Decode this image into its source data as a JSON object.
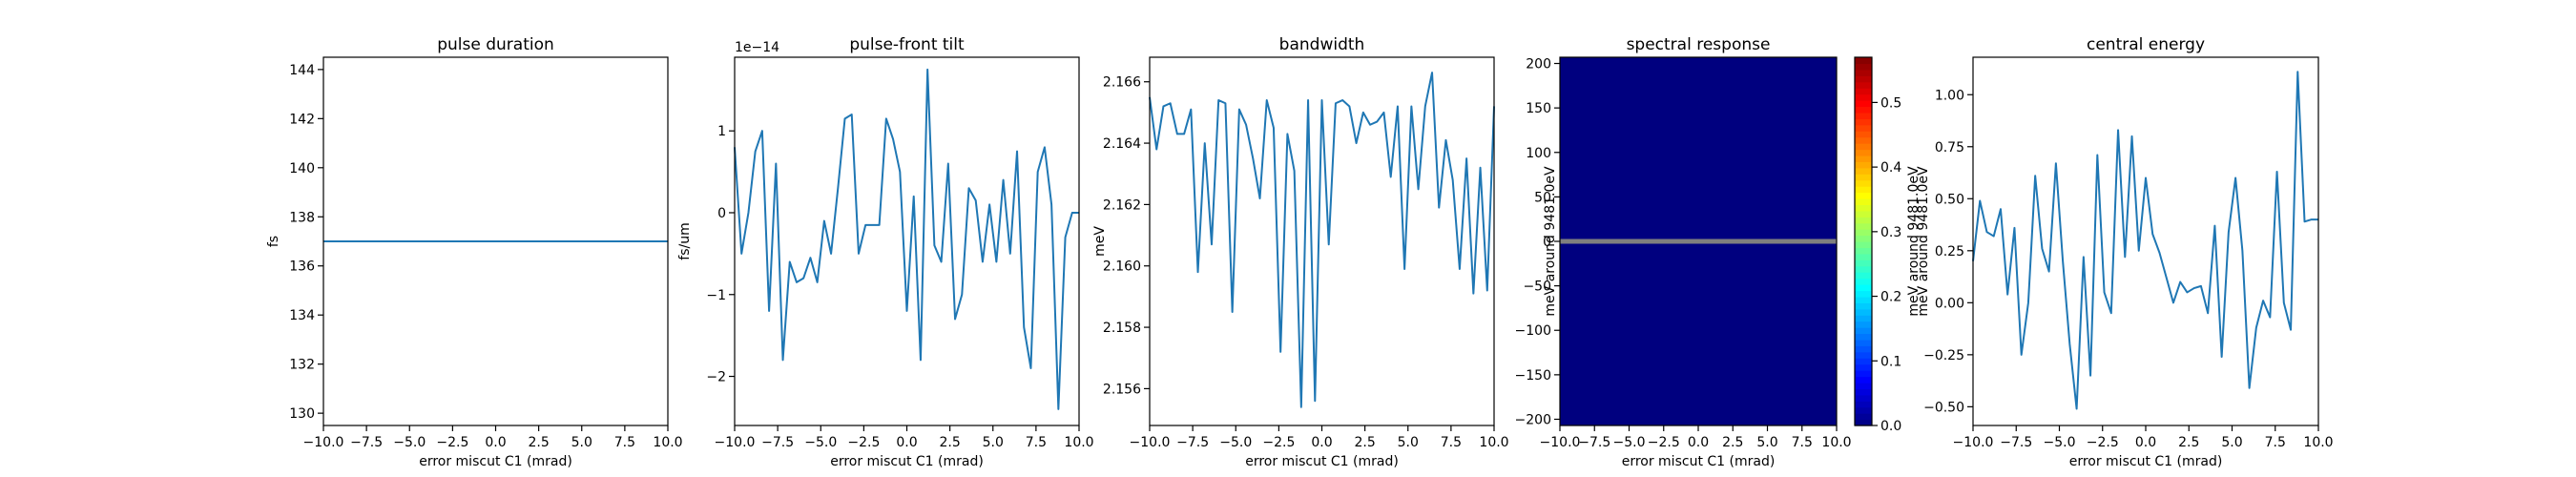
{
  "chart_data": [
    {
      "type": "line",
      "title": "pulse duration",
      "xlabel": "error miscut C1 (mrad)",
      "ylabel": "fs",
      "xlim": [
        -10,
        10
      ],
      "ylim": [
        129.5,
        144.5
      ],
      "xticks": [
        -10,
        -7.5,
        -5,
        -2.5,
        0,
        2.5,
        5,
        7.5,
        10
      ],
      "xtick_labels": [
        "−10.0",
        "−7.5",
        "−5.0",
        "−2.5",
        "0.0",
        "2.5",
        "5.0",
        "7.5",
        "10.0"
      ],
      "yticks": [
        130,
        132,
        134,
        136,
        138,
        140,
        142,
        144
      ],
      "ytick_labels": [
        "130",
        "132",
        "134",
        "136",
        "138",
        "140",
        "142",
        "144"
      ],
      "color": "#1f77b4",
      "series": [
        {
          "x": [
            -10,
            10
          ],
          "y": [
            137.0,
            137.0
          ]
        }
      ]
    },
    {
      "type": "line",
      "title": "pulse-front tilt",
      "xlabel": "error miscut C1 (mrad)",
      "ylabel": "fs/um",
      "offset_text": "1e−14",
      "xlim": [
        -10,
        10
      ],
      "ylim": [
        -2.6,
        1.9
      ],
      "xticks": [
        -10,
        -7.5,
        -5,
        -2.5,
        0,
        2.5,
        5,
        7.5,
        10
      ],
      "xtick_labels": [
        "−10.0",
        "−7.5",
        "−5.0",
        "−2.5",
        "0.0",
        "2.5",
        "5.0",
        "7.5",
        "10.0"
      ],
      "yticks": [
        -2,
        -1,
        0,
        1
      ],
      "ytick_labels": [
        "−2",
        "−1",
        "0",
        "1"
      ],
      "color": "#1f77b4",
      "series": [
        {
          "x": [
            -10,
            -9.6,
            -9.2,
            -8.8,
            -8.4,
            -8.0,
            -7.6,
            -7.2,
            -6.8,
            -6.4,
            -6.0,
            -5.6,
            -5.2,
            -4.8,
            -4.4,
            -4.0,
            -3.6,
            -3.2,
            -2.8,
            -2.4,
            -2.0,
            -1.6,
            -1.2,
            -0.8,
            -0.4,
            0.0,
            0.4,
            0.8,
            1.2,
            1.6,
            2.0,
            2.4,
            2.8,
            3.2,
            3.6,
            4.0,
            4.4,
            4.8,
            5.2,
            5.6,
            6.0,
            6.4,
            6.8,
            7.2,
            7.6,
            8.0,
            8.4,
            8.8,
            9.2,
            9.6,
            10.0
          ],
          "y": [
            0.8,
            -0.5,
            0.0,
            0.75,
            1.0,
            -1.2,
            0.6,
            -1.8,
            -0.6,
            -0.85,
            -0.8,
            -0.55,
            -0.85,
            -0.1,
            -0.5,
            0.3,
            1.15,
            1.2,
            -0.5,
            -0.15,
            -0.15,
            -0.15,
            1.15,
            0.9,
            0.5,
            -1.2,
            0.2,
            -1.8,
            1.75,
            -0.4,
            -0.6,
            0.6,
            -1.3,
            -1.0,
            0.3,
            0.15,
            -0.6,
            0.1,
            -0.6,
            0.4,
            -0.5,
            0.75,
            -1.4,
            -1.9,
            0.5,
            0.8,
            0.1,
            -2.4,
            -0.3,
            0.0,
            0.0
          ]
        }
      ]
    },
    {
      "type": "line",
      "title": "bandwidth",
      "xlabel": "error miscut C1 (mrad)",
      "ylabel": "meV",
      "xlim": [
        -10,
        10
      ],
      "ylim": [
        2.1548,
        2.1668
      ],
      "xticks": [
        -10,
        -7.5,
        -5,
        -2.5,
        0,
        2.5,
        5,
        7.5,
        10
      ],
      "xtick_labels": [
        "−10.0",
        "−7.5",
        "−5.0",
        "−2.5",
        "0.0",
        "2.5",
        "5.0",
        "7.5",
        "10.0"
      ],
      "yticks": [
        2.156,
        2.158,
        2.16,
        2.162,
        2.164,
        2.166
      ],
      "ytick_labels": [
        "2.156",
        "2.158",
        "2.160",
        "2.162",
        "2.164",
        "2.166"
      ],
      "color": "#1f77b4",
      "series": [
        {
          "x": [
            -10,
            -9.6,
            -9.2,
            -8.8,
            -8.4,
            -8.0,
            -7.6,
            -7.2,
            -6.8,
            -6.4,
            -6.0,
            -5.6,
            -5.2,
            -4.8,
            -4.4,
            -4.0,
            -3.6,
            -3.2,
            -2.8,
            -2.4,
            -2.0,
            -1.6,
            -1.2,
            -0.8,
            -0.4,
            0.0,
            0.4,
            0.8,
            1.2,
            1.6,
            2.0,
            2.4,
            2.8,
            3.2,
            3.6,
            4.0,
            4.4,
            4.8,
            5.2,
            5.6,
            6.0,
            6.4,
            6.8,
            7.2,
            7.6,
            8.0,
            8.4,
            8.8,
            9.2,
            9.6,
            10.0
          ],
          "y": [
            2.1655,
            2.1638,
            2.1652,
            2.1653,
            2.1643,
            2.1643,
            2.1651,
            2.1598,
            2.164,
            2.1607,
            2.1654,
            2.1653,
            2.1585,
            2.1651,
            2.1646,
            2.1635,
            2.1622,
            2.1654,
            2.1645,
            2.1572,
            2.1643,
            2.1631,
            2.1554,
            2.1654,
            2.1556,
            2.1654,
            2.1607,
            2.1653,
            2.1654,
            2.1652,
            2.164,
            2.165,
            2.1646,
            2.1647,
            2.165,
            2.1629,
            2.1652,
            2.1599,
            2.1652,
            2.1625,
            2.1652,
            2.1663,
            2.1619,
            2.1641,
            2.1628,
            2.1599,
            2.1635,
            2.1591,
            2.1632,
            2.1592,
            2.1652
          ]
        }
      ]
    },
    {
      "type": "heatmap",
      "title": "spectral response",
      "xlabel": "error miscut C1 (mrad)",
      "ylabel": "meV around 9481.0eV",
      "colorbar_label": "meV around 9481.0eV",
      "colormap": "jet",
      "background_color": "#00007f",
      "band_color": "#7f7f7f",
      "band_y": 0,
      "xlim": [
        -10,
        10
      ],
      "ylim": [
        -207,
        207
      ],
      "xticks": [
        -10,
        -7.5,
        -5,
        -2.5,
        0,
        2.5,
        5,
        7.5,
        10
      ],
      "xtick_labels": [
        "−10.0",
        "−7.5",
        "−5.0",
        "−2.5",
        "0.0",
        "2.5",
        "5.0",
        "7.5",
        "10.0"
      ],
      "yticks": [
        -200,
        -150,
        -100,
        -50,
        0,
        50,
        100,
        150,
        200
      ],
      "ytick_labels": [
        "−200",
        "−150",
        "−100",
        "−50",
        "0",
        "50",
        "100",
        "150",
        "200"
      ],
      "colorbar_range": [
        0,
        0.57
      ],
      "colorbar_ticks": [
        0.0,
        0.1,
        0.2,
        0.3,
        0.4,
        0.5
      ],
      "colorbar_tick_labels": [
        "0.0",
        "0.1",
        "0.2",
        "0.3",
        "0.4",
        "0.5"
      ]
    },
    {
      "type": "line",
      "title": "central energy",
      "xlabel": "error miscut C1 (mrad)",
      "ylabel": "meV around 9481.0eV",
      "xlim": [
        -10,
        10
      ],
      "ylim": [
        -0.59,
        1.18
      ],
      "xticks": [
        -10,
        -7.5,
        -5,
        -2.5,
        0,
        2.5,
        5,
        7.5,
        10
      ],
      "xtick_labels": [
        "−10.0",
        "−7.5",
        "−5.0",
        "−2.5",
        "0.0",
        "2.5",
        "5.0",
        "7.5",
        "10.0"
      ],
      "yticks": [
        -0.5,
        -0.25,
        0.0,
        0.25,
        0.5,
        0.75,
        1.0
      ],
      "ytick_labels": [
        "−0.50",
        "−0.25",
        "0.00",
        "0.25",
        "0.50",
        "0.75",
        "1.00"
      ],
      "color": "#1f77b4",
      "series": [
        {
          "x": [
            -10,
            -9.6,
            -9.2,
            -8.8,
            -8.4,
            -8.0,
            -7.6,
            -7.2,
            -6.8,
            -6.4,
            -6.0,
            -5.6,
            -5.2,
            -4.8,
            -4.4,
            -4.0,
            -3.6,
            -3.2,
            -2.8,
            -2.4,
            -2.0,
            -1.6,
            -1.2,
            -0.8,
            -0.4,
            0.0,
            0.4,
            0.8,
            1.2,
            1.6,
            2.0,
            2.4,
            2.8,
            3.2,
            3.6,
            4.0,
            4.4,
            4.8,
            5.2,
            5.6,
            6.0,
            6.4,
            6.8,
            7.2,
            7.6,
            8.0,
            8.4,
            8.8,
            9.2,
            9.6,
            10.0
          ],
          "y": [
            0.2,
            0.49,
            0.34,
            0.32,
            0.45,
            0.04,
            0.36,
            -0.25,
            0.0,
            0.61,
            0.26,
            0.15,
            0.67,
            0.2,
            -0.2,
            -0.51,
            0.22,
            -0.35,
            0.71,
            0.05,
            -0.05,
            0.83,
            0.22,
            0.8,
            0.25,
            0.6,
            0.33,
            0.24,
            0.12,
            0.0,
            0.1,
            0.05,
            0.07,
            0.08,
            -0.05,
            0.37,
            -0.26,
            0.34,
            0.6,
            0.25,
            -0.41,
            -0.12,
            0.01,
            -0.07,
            0.63,
            0.0,
            -0.13,
            1.11,
            0.39,
            0.4,
            0.4
          ]
        }
      ]
    }
  ]
}
